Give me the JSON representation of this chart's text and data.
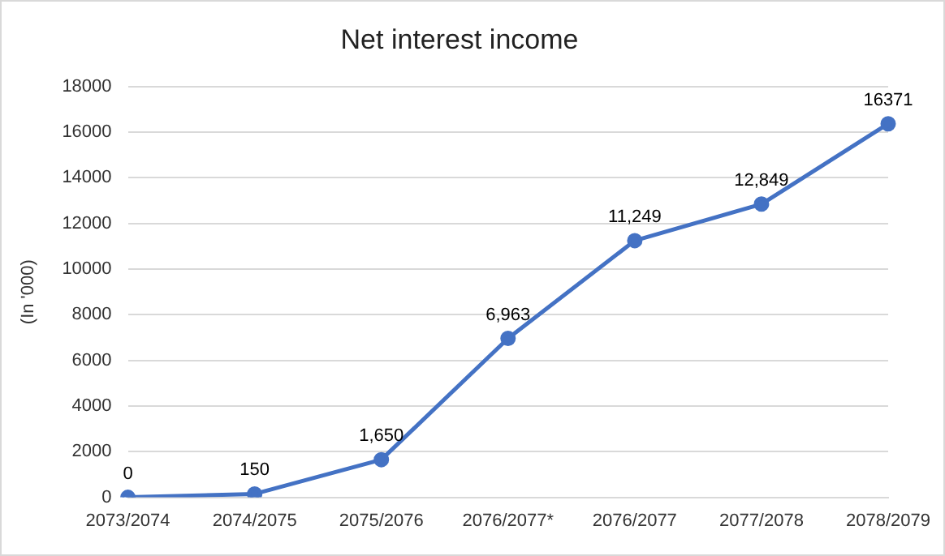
{
  "chart_data": {
    "type": "line",
    "title": "Net interest income",
    "ylabel": "(In '000)",
    "categories": [
      "2073/2074",
      "2074/2075",
      "2075/2076",
      "2076/2077*",
      "2076/2077",
      "2077/2078",
      "2078/2079"
    ],
    "series": [
      {
        "color": "#4472c4",
        "values": [
          0,
          150,
          1650,
          6963,
          11249,
          12849,
          16371
        ],
        "value_labels": [
          "0",
          "150",
          "1,650",
          "6,963",
          "11,249",
          "12,849",
          "16371"
        ]
      }
    ],
    "ylim": [
      0,
      18000
    ],
    "yticks": [
      0,
      2000,
      4000,
      6000,
      8000,
      10000,
      12000,
      14000,
      16000,
      18000
    ],
    "grid": "y",
    "legend": false,
    "marker": "circle",
    "line_style": "solid"
  }
}
